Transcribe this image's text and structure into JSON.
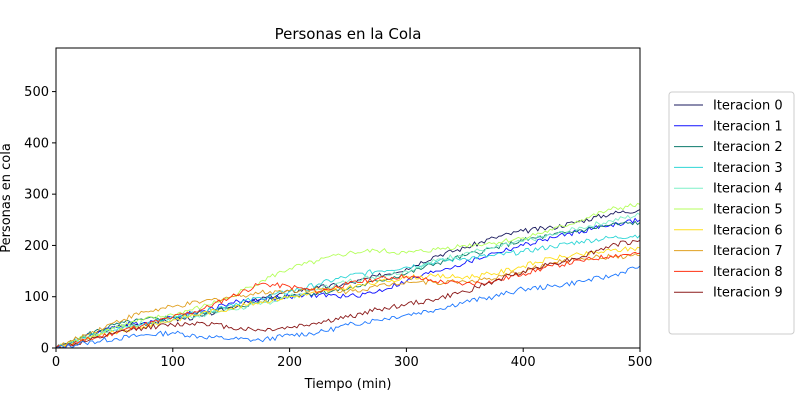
{
  "chart_data": {
    "type": "line",
    "title": "Personas en la Cola",
    "xlabel": "Tiempo (min)",
    "ylabel": "Personas en cola",
    "xlim": [
      0,
      500
    ],
    "ylim": [
      0,
      585
    ],
    "xticks": [
      0,
      100,
      200,
      300,
      400,
      500
    ],
    "yticks": [
      0,
      100,
      200,
      300,
      400,
      500
    ],
    "grid": false,
    "legend_position": "outside-right",
    "x": [
      0,
      25,
      50,
      75,
      100,
      125,
      150,
      175,
      200,
      225,
      250,
      275,
      300,
      325,
      350,
      375,
      400,
      425,
      450,
      475,
      500
    ],
    "series": [
      {
        "name": "Iteracion 0",
        "color": "#1a1a5e",
        "values": [
          0,
          20,
          40,
          48,
          55,
          62,
          80,
          95,
          110,
          118,
          125,
          140,
          155,
          180,
          195,
          215,
          228,
          235,
          248,
          262,
          270
        ]
      },
      {
        "name": "Iteracion 1",
        "color": "#1010ff",
        "values": [
          0,
          22,
          42,
          50,
          60,
          72,
          88,
          95,
          100,
          104,
          100,
          110,
          130,
          150,
          165,
          185,
          200,
          215,
          228,
          240,
          250
        ]
      },
      {
        "name": "Iteracion 2",
        "color": "#0c7a6b",
        "values": [
          0,
          25,
          45,
          55,
          60,
          68,
          78,
          90,
          103,
          108,
          115,
          130,
          145,
          165,
          180,
          195,
          210,
          220,
          230,
          240,
          245
        ]
      },
      {
        "name": "Iteracion 3",
        "color": "#2fd6d6",
        "values": [
          0,
          20,
          35,
          48,
          60,
          70,
          85,
          98,
          110,
          125,
          140,
          150,
          158,
          168,
          175,
          180,
          188,
          198,
          208,
          215,
          220
        ]
      },
      {
        "name": "Iteracion 4",
        "color": "#7ff0c8",
        "values": [
          0,
          18,
          38,
          48,
          55,
          65,
          75,
          85,
          100,
          115,
          130,
          140,
          150,
          170,
          185,
          195,
          208,
          220,
          235,
          248,
          260
        ]
      },
      {
        "name": "Iteracion 5",
        "color": "#b5ff5c",
        "values": [
          0,
          22,
          40,
          55,
          65,
          80,
          100,
          130,
          155,
          170,
          185,
          190,
          185,
          192,
          200,
          205,
          215,
          230,
          250,
          270,
          280
        ]
      },
      {
        "name": "Iteracion 6",
        "color": "#ffdf1a",
        "values": [
          0,
          15,
          30,
          42,
          55,
          68,
          78,
          90,
          100,
          108,
          118,
          128,
          138,
          140,
          138,
          145,
          160,
          175,
          182,
          190,
          195
        ]
      },
      {
        "name": "Iteracion 7",
        "color": "#e0a020",
        "values": [
          0,
          25,
          50,
          70,
          80,
          90,
          100,
          108,
          112,
          115,
          110,
          120,
          130,
          128,
          130,
          135,
          150,
          165,
          175,
          178,
          180
        ]
      },
      {
        "name": "Iteracion 8",
        "color": "#ff3010",
        "values": [
          0,
          15,
          30,
          45,
          60,
          75,
          100,
          125,
          120,
          110,
          125,
          135,
          140,
          130,
          125,
          130,
          145,
          160,
          170,
          180,
          185
        ]
      },
      {
        "name": "Iteracion 9",
        "color": "#8b1a1a",
        "values": [
          0,
          12,
          28,
          40,
          45,
          50,
          40,
          35,
          40,
          50,
          60,
          75,
          85,
          95,
          110,
          130,
          150,
          165,
          178,
          200,
          210
        ]
      },
      {
        "name": "",
        "color": "#1e78ff",
        "values": [
          0,
          10,
          18,
          25,
          30,
          22,
          18,
          15,
          25,
          30,
          45,
          55,
          65,
          75,
          90,
          100,
          115,
          120,
          130,
          140,
          160
        ]
      }
    ]
  }
}
